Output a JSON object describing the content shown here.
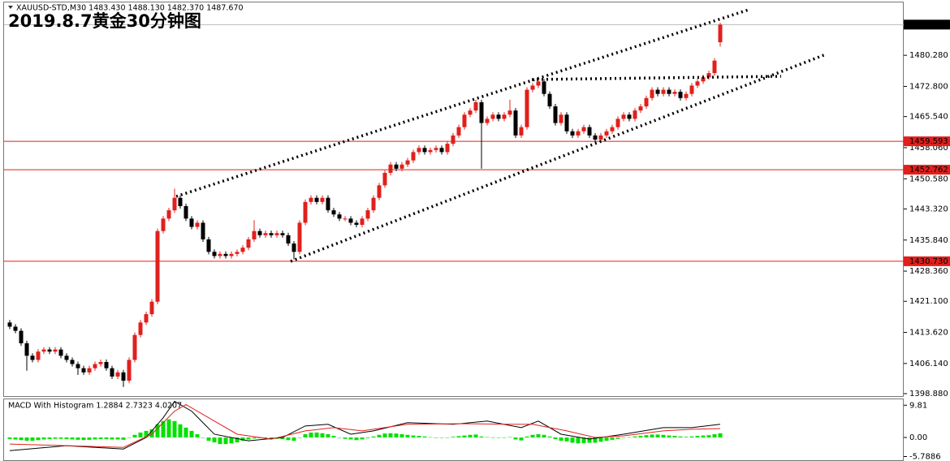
{
  "chart_data": [
    {
      "type": "candlestick",
      "header": "XAUUSD-STD,M30  1483.430 1488.130 1482.370 1487.670",
      "title": "2019.8.7黄金30分钟图",
      "up_color": "#e0201c",
      "down_color": "#000000",
      "ylim": [
        1398.3,
        1493.2
      ],
      "yticks": [
        {
          "value": 1480.28,
          "label": "1480.280"
        },
        {
          "value": 1472.8,
          "label": "1472.800"
        },
        {
          "value": 1465.54,
          "label": "1465.540"
        },
        {
          "value": 1458.06,
          "label": "1458.060"
        },
        {
          "value": 1450.58,
          "label": "1450.580"
        },
        {
          "value": 1443.32,
          "label": "1443.320"
        },
        {
          "value": 1435.84,
          "label": "1435.840"
        },
        {
          "value": 1428.36,
          "label": "1428.360"
        },
        {
          "value": 1421.1,
          "label": "1421.100"
        },
        {
          "value": 1413.62,
          "label": "1413.620"
        },
        {
          "value": 1406.14,
          "label": "1406.140"
        },
        {
          "value": 1398.88,
          "label": "1398.880"
        }
      ],
      "levels": [
        1459.593,
        1452.762,
        {
          "value": 1430.73,
          "label": "1430.730"
        }
      ],
      "level_color": "#e0201c",
      "current_price": {
        "value": 1487.67,
        "label": "1487.670"
      },
      "ohlc": [
        [
          1416,
          1416.6,
          1414.4,
          1415
        ],
        [
          1415,
          1415.6,
          1413.4,
          1414
        ],
        [
          1414,
          1414.6,
          1410.4,
          1411
        ],
        [
          1411,
          1411.6,
          1404.4,
          1408
        ],
        [
          1408,
          1408.6,
          1406.4,
          1407
        ],
        [
          1407,
          1409.6,
          1406.4,
          1409
        ],
        [
          1409,
          1410.1,
          1408.4,
          1409.5
        ],
        [
          1409.5,
          1410.1,
          1408.4,
          1409
        ],
        [
          1409,
          1410.1,
          1408.4,
          1409.5
        ],
        [
          1409.5,
          1410.1,
          1407.4,
          1408
        ],
        [
          1408,
          1408.6,
          1406.4,
          1407
        ],
        [
          1407,
          1407.6,
          1405.4,
          1406
        ],
        [
          1406,
          1406.6,
          1403.4,
          1405
        ],
        [
          1405,
          1405.6,
          1403.4,
          1404
        ],
        [
          1404,
          1405.6,
          1403.4,
          1405
        ],
        [
          1405,
          1406.6,
          1404.4,
          1406
        ],
        [
          1406,
          1407.1,
          1405.4,
          1406.5
        ],
        [
          1406.5,
          1407.1,
          1404.4,
          1405
        ],
        [
          1405,
          1405.6,
          1402.4,
          1403
        ],
        [
          1403,
          1404.6,
          1402.4,
          1404
        ],
        [
          1404,
          1404.6,
          1400.5,
          1402
        ],
        [
          1402,
          1407.6,
          1401.4,
          1407
        ],
        [
          1407,
          1413.6,
          1406.4,
          1413
        ],
        [
          1413,
          1416.6,
          1412.4,
          1416
        ],
        [
          1416,
          1418.6,
          1415.4,
          1418
        ],
        [
          1418,
          1421.6,
          1417.4,
          1421
        ],
        [
          1421,
          1438.6,
          1420.4,
          1438
        ],
        [
          1438,
          1441.6,
          1437.4,
          1441
        ],
        [
          1441,
          1443.6,
          1440.4,
          1443
        ],
        [
          1443,
          1448.2,
          1442.4,
          1446
        ],
        [
          1446,
          1446.6,
          1443.4,
          1444
        ],
        [
          1444,
          1444.6,
          1440.4,
          1441
        ],
        [
          1441,
          1441.6,
          1438.4,
          1439
        ],
        [
          1439,
          1440.6,
          1438.4,
          1440
        ],
        [
          1440,
          1440.6,
          1435.4,
          1436
        ],
        [
          1436,
          1436.6,
          1432.4,
          1433
        ],
        [
          1433,
          1433.6,
          1431.4,
          1432
        ],
        [
          1432,
          1433.1,
          1431.4,
          1432.5
        ],
        [
          1432.5,
          1433.1,
          1431.4,
          1432
        ],
        [
          1432,
          1433.1,
          1431.4,
          1432.5
        ],
        [
          1432.5,
          1433.6,
          1431.9,
          1433
        ],
        [
          1433,
          1434.6,
          1432.4,
          1434
        ],
        [
          1434,
          1436.6,
          1433.4,
          1436
        ],
        [
          1436,
          1440.6,
          1435.4,
          1438
        ],
        [
          1438,
          1438.6,
          1436.4,
          1437
        ],
        [
          1437,
          1438.1,
          1436.4,
          1437.5
        ],
        [
          1437.5,
          1438.1,
          1436.4,
          1437
        ],
        [
          1437,
          1438.1,
          1436.4,
          1437.5
        ],
        [
          1437.5,
          1438.1,
          1436.4,
          1437
        ],
        [
          1437,
          1437.6,
          1434.4,
          1435
        ],
        [
          1435,
          1435.6,
          1431.2,
          1433
        ],
        [
          1433,
          1440.6,
          1432.4,
          1440
        ],
        [
          1440,
          1445.6,
          1439.4,
          1445
        ],
        [
          1445,
          1446.6,
          1444.4,
          1446
        ],
        [
          1446,
          1446.6,
          1444.4,
          1445
        ],
        [
          1445,
          1446.6,
          1444.4,
          1446
        ],
        [
          1446,
          1446.6,
          1442.4,
          1443
        ],
        [
          1443,
          1443.6,
          1441.4,
          1442
        ],
        [
          1442,
          1442.6,
          1440.4,
          1441
        ],
        [
          1441,
          1441.6,
          1440.4,
          1441
        ],
        [
          1441,
          1441.6,
          1439.4,
          1440
        ],
        [
          1440,
          1440.6,
          1438.9,
          1439.5
        ],
        [
          1439.5,
          1441.6,
          1438.9,
          1441
        ],
        [
          1441,
          1443.6,
          1440.4,
          1443
        ],
        [
          1443,
          1446.6,
          1442.4,
          1446
        ],
        [
          1446,
          1449.6,
          1445.4,
          1449
        ],
        [
          1449,
          1452.6,
          1448.4,
          1452
        ],
        [
          1452,
          1454.6,
          1451.4,
          1454
        ],
        [
          1454,
          1454.6,
          1452.4,
          1453
        ],
        [
          1453,
          1454.6,
          1452.4,
          1454
        ],
        [
          1454,
          1455.6,
          1453.4,
          1455
        ],
        [
          1455,
          1457.6,
          1454.4,
          1457
        ],
        [
          1457,
          1458.6,
          1456.4,
          1458
        ],
        [
          1458,
          1458.6,
          1456.4,
          1457
        ],
        [
          1457,
          1458.1,
          1456.4,
          1457.5
        ],
        [
          1457.5,
          1458.6,
          1456.9,
          1458
        ],
        [
          1458,
          1458.6,
          1456.4,
          1457
        ],
        [
          1457,
          1459.6,
          1456.4,
          1459
        ],
        [
          1459,
          1461.6,
          1458.4,
          1461
        ],
        [
          1461,
          1463.6,
          1460.4,
          1463
        ],
        [
          1463,
          1466.6,
          1462.4,
          1466
        ],
        [
          1466,
          1467.6,
          1465.4,
          1467
        ],
        [
          1467,
          1469.6,
          1466.4,
          1469
        ],
        [
          1469,
          1469.6,
          1453,
          1464
        ],
        [
          1464,
          1465.6,
          1463.4,
          1465
        ],
        [
          1465,
          1466.6,
          1464.4,
          1466
        ],
        [
          1466,
          1466.6,
          1464.4,
          1465
        ],
        [
          1465,
          1466.6,
          1464.4,
          1466
        ],
        [
          1466,
          1469.6,
          1465.4,
          1467
        ],
        [
          1467,
          1467.6,
          1460.4,
          1461
        ],
        [
          1461,
          1463.6,
          1460.4,
          1463
        ],
        [
          1463,
          1472.6,
          1462.4,
          1472
        ],
        [
          1472,
          1473.6,
          1471.4,
          1473
        ],
        [
          1473,
          1474.6,
          1472.4,
          1474
        ],
        [
          1474,
          1474.6,
          1470.4,
          1471
        ],
        [
          1471,
          1471.6,
          1467.4,
          1468
        ],
        [
          1468,
          1468.6,
          1463.4,
          1464
        ],
        [
          1464,
          1466.6,
          1463.4,
          1466
        ],
        [
          1466,
          1466.6,
          1461.4,
          1462
        ],
        [
          1462,
          1462.6,
          1460.4,
          1461
        ],
        [
          1461,
          1462.6,
          1460.4,
          1462
        ],
        [
          1462,
          1463.6,
          1461.4,
          1463
        ],
        [
          1463,
          1463.6,
          1460.4,
          1461
        ],
        [
          1461,
          1461.6,
          1459.4,
          1460
        ],
        [
          1460,
          1461.6,
          1459.4,
          1461
        ],
        [
          1461,
          1462.6,
          1460.4,
          1462
        ],
        [
          1462,
          1463.6,
          1461.4,
          1463
        ],
        [
          1463,
          1465.6,
          1462.4,
          1465
        ],
        [
          1465,
          1466.6,
          1464.4,
          1466
        ],
        [
          1466,
          1466.6,
          1464.4,
          1465
        ],
        [
          1465,
          1467.6,
          1464.4,
          1467
        ],
        [
          1467,
          1468.6,
          1466.4,
          1468
        ],
        [
          1468,
          1470.6,
          1467.4,
          1470
        ],
        [
          1470,
          1472.6,
          1469.4,
          1472
        ],
        [
          1472,
          1472.6,
          1470.4,
          1471
        ],
        [
          1471,
          1472.6,
          1470.4,
          1472
        ],
        [
          1472,
          1472.6,
          1470.4,
          1471
        ],
        [
          1471,
          1472.1,
          1470.4,
          1471.5
        ],
        [
          1471.5,
          1472.1,
          1469.4,
          1470
        ],
        [
          1470,
          1471.6,
          1469.4,
          1471
        ],
        [
          1471,
          1473.6,
          1470.4,
          1473
        ],
        [
          1473,
          1474.6,
          1472.4,
          1474
        ],
        [
          1474,
          1475.6,
          1473.4,
          1475
        ],
        [
          1475,
          1476.6,
          1474.4,
          1476
        ],
        [
          1476,
          1479.6,
          1475.4,
          1479
        ],
        [
          1483.43,
          1488.13,
          1482.37,
          1487.67
        ]
      ]
    },
    {
      "type": "macd",
      "title": "MACD With Histogram 1.2884 2.7323 4.0207",
      "ylim": [
        -6.9,
        11.6
      ],
      "yticks": [
        9.81,
        {
          "value": 0,
          "label": "0.00"
        },
        -5.7886
      ],
      "histogram_color": "#00e000",
      "histogram": [
        -0.5,
        -0.6,
        -0.8,
        -1,
        -1,
        -0.8,
        -0.6,
        -0.5,
        -0.4,
        -0.4,
        -0.5,
        -0.6,
        -0.7,
        -0.8,
        -0.7,
        -0.6,
        -0.5,
        -0.5,
        -0.6,
        -0.6,
        -0.7,
        0,
        0.8,
        1.5,
        2,
        2.5,
        4,
        5,
        5.5,
        5,
        4,
        3,
        2,
        1,
        0,
        -1,
        -1.5,
        -2,
        -2,
        -1.8,
        -1.5,
        -1,
        -0.6,
        -0.3,
        -0.2,
        -0.2,
        -0.3,
        -0.4,
        -0.5,
        -0.8,
        -1,
        0,
        1,
        1.5,
        1.5,
        1.3,
        1,
        0.5,
        0,
        -0.4,
        -0.6,
        -0.8,
        -0.6,
        -0.2,
        0.3,
        0.8,
        1.2,
        1.3,
        1.2,
        1,
        0.8,
        0.6,
        0.5,
        0.3,
        0.1,
        0,
        -0.1,
        0,
        0.2,
        0.4,
        0.6,
        0.8,
        0.9,
        0.3,
        0.1,
        0,
        -0.1,
        0,
        0.1,
        -0.6,
        -0.9,
        0.3,
        0.8,
        1,
        0.8,
        0.3,
        -0.5,
        -1,
        -1.2,
        -1.6,
        -1.8,
        -1.7,
        -1.6,
        -1.6,
        -1.3,
        -1,
        -0.7,
        -0.4,
        -0.1,
        0.1,
        0.3,
        0.5,
        0.7,
        0.9,
        0.9,
        0.8,
        0.6,
        0.5,
        0.3,
        0.2,
        0.3,
        0.5,
        0.6,
        0.7,
        1,
        1.2884
      ],
      "series": [
        {
          "color": "#000000",
          "x": [
            0,
            10,
            20,
            24,
            27,
            29,
            32,
            36,
            42,
            48,
            52,
            56,
            60,
            64,
            70,
            78,
            84,
            90,
            93,
            97,
            102,
            108,
            115,
            120,
            125
          ],
          "values": [
            -4,
            -2.5,
            -3.5,
            0,
            6,
            11,
            8,
            1,
            -1,
            0,
            3.5,
            4,
            1,
            2,
            4.5,
            4,
            5,
            3,
            5,
            1,
            -0.5,
            1,
            3,
            3,
            4.0207
          ]
        },
        {
          "color": "#e0201c",
          "x": [
            0,
            10,
            20,
            25,
            29,
            31,
            35,
            40,
            46,
            52,
            57,
            62,
            70,
            80,
            88,
            92,
            98,
            103,
            108,
            115,
            120,
            125
          ],
          "values": [
            -2,
            -2.5,
            -3,
            1,
            8,
            10,
            6,
            1,
            -0.5,
            2,
            3,
            2,
            4,
            4.2,
            4,
            4,
            2,
            0,
            0.5,
            2,
            2.5,
            2.7323
          ]
        }
      ]
    }
  ]
}
